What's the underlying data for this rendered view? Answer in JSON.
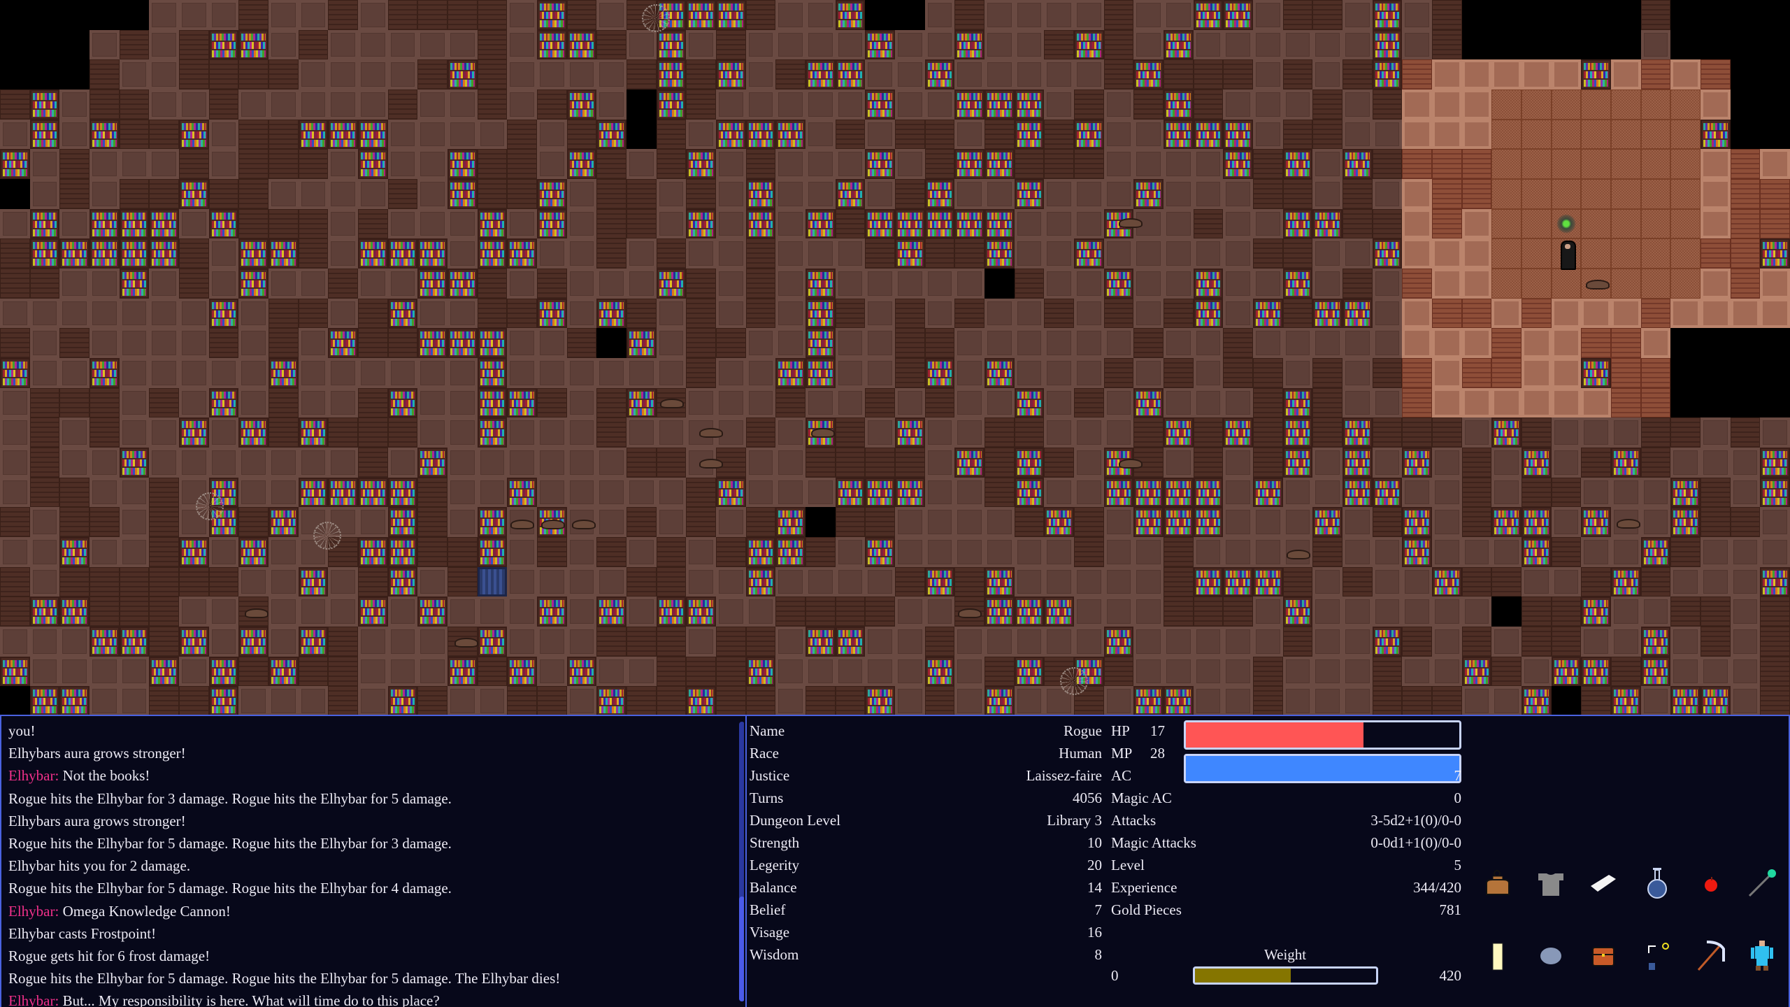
{
  "colors": {
    "accent_border": "#4a62e0",
    "panel_bg": "#07081a",
    "speaker": "#f0308a",
    "hp": "#ff5555",
    "mp": "#3f87ff",
    "weight": "#857500"
  },
  "messages": [
    {
      "speaker": "",
      "text": "you!"
    },
    {
      "speaker": "",
      "text": "Elhybars aura grows stronger!"
    },
    {
      "speaker": "Elhybar:",
      "text": "Not the books!"
    },
    {
      "speaker": "",
      "text": "Rogue hits the Elhybar for 3 damage. Rogue hits the Elhybar for 5 damage."
    },
    {
      "speaker": "",
      "text": "Elhybars aura grows stronger!"
    },
    {
      "speaker": "",
      "text": "Rogue hits the Elhybar for 5 damage. Rogue hits the Elhybar for 3 damage."
    },
    {
      "speaker": "",
      "text": "Elhybar hits you for 2 damage."
    },
    {
      "speaker": "",
      "text": "Rogue hits the Elhybar for 5 damage. Rogue hits the Elhybar for 4 damage."
    },
    {
      "speaker": "Elhybar:",
      "text": "Omega Knowledge Cannon!"
    },
    {
      "speaker": "",
      "text": "Elhybar casts Frostpoint!"
    },
    {
      "speaker": "",
      "text": "Rogue gets hit for 6 frost damage!"
    },
    {
      "speaker": "",
      "text": "Rogue hits the Elhybar for 5 damage. Rogue hits the Elhybar for 5 damage. The Elhybar dies!"
    },
    {
      "speaker": "Elhybar:",
      "text": "But... My responsibility is here. What will time do to this place?"
    }
  ],
  "character": [
    {
      "label": "Name",
      "value": "Rogue"
    },
    {
      "label": "Race",
      "value": "Human"
    },
    {
      "label": "Justice",
      "value": "Laissez-faire"
    },
    {
      "label": "Turns",
      "value": "4056"
    },
    {
      "label": "Dungeon Level",
      "value": "Library 3"
    },
    {
      "label": "Strength",
      "value": "10"
    },
    {
      "label": "Legerity",
      "value": "20"
    },
    {
      "label": "Balance",
      "value": "14"
    },
    {
      "label": "Belief",
      "value": "7"
    },
    {
      "label": "Visage",
      "value": "16"
    },
    {
      "label": "Wisdom",
      "value": "8"
    }
  ],
  "vitals": {
    "hp": {
      "label": "HP",
      "value": "17",
      "fill": 0.65
    },
    "mp": {
      "label": "MP",
      "value": "28",
      "fill": 1.0
    }
  },
  "combat": [
    {
      "label": "AC",
      "value": "7"
    },
    {
      "label": "Magic AC",
      "value": "0"
    },
    {
      "label": "Attacks",
      "value": "3-5d2+1(0)/0-0"
    },
    {
      "label": "Magic Attacks",
      "value": "0-0d1+1(0)/0-0"
    },
    {
      "label": "Level",
      "value": "5"
    },
    {
      "label": "Experience",
      "value": "344/420"
    },
    {
      "label": "Gold Pieces",
      "value": "781"
    }
  ],
  "weight": {
    "label": "Weight",
    "min": "0",
    "max": "420",
    "fill": 0.53
  },
  "inventory": [
    "sack-icon",
    "chain-mail-icon",
    "scroll-icon",
    "potion-flask-icon",
    "apple-icon",
    "magic-wand-icon",
    "candle-icon",
    "stone-icon",
    "treasure-chest-icon",
    "boomerang-ring-bottle-icon",
    "pickaxe-icon",
    "character-doll-icon"
  ]
}
